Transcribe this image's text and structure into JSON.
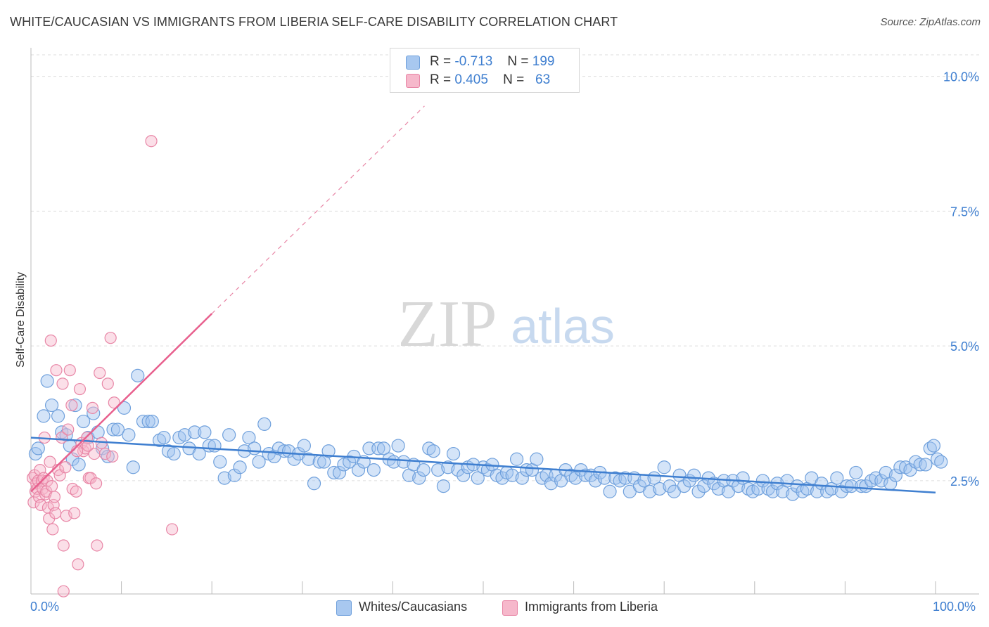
{
  "title": "WHITE/CAUCASIAN VS IMMIGRANTS FROM LIBERIA SELF-CARE DISABILITY CORRELATION CHART",
  "source": "Source: ZipAtlas.com",
  "watermark": {
    "zip": "ZIP",
    "atlas": "atlas"
  },
  "legend_top": [
    {
      "r_label": "R =",
      "r_value": "-0.713",
      "n_label": "N =",
      "n_value": "199",
      "color": "#a8c8f0",
      "border": "#6fa0dc"
    },
    {
      "r_label": "R =",
      "r_value": "0.405",
      "n_label": "N =",
      "n_value": "63",
      "color": "#f6b8cb",
      "border": "#e886a6"
    }
  ],
  "legend_bottom": [
    {
      "label": "Whites/Caucasians",
      "color": "#a8c8f0",
      "border": "#6fa0dc"
    },
    {
      "label": "Immigrants from Liberia",
      "color": "#f6b8cb",
      "border": "#e886a6"
    }
  ],
  "x_tick_labels": {
    "min": "0.0%",
    "max": "100.0%"
  },
  "colors": {
    "blue": "#3f7fd0",
    "blue_fill": "rgba(160,195,240,0.45)",
    "blue_stroke": "#6fa0dc",
    "pink": "#e8608e",
    "pink_fill": "rgba(246,184,203,0.45)",
    "pink_stroke": "#e886a6",
    "grid": "#dddddd"
  },
  "chart_data": {
    "type": "scatter",
    "ylabel": "Self-Care Disability",
    "xlim": [
      0,
      100
    ],
    "ylim": [
      0.4,
      10.4
    ],
    "y_ticks": [
      {
        "value": 2.5,
        "label": "2.5%"
      },
      {
        "value": 5.0,
        "label": "5.0%"
      },
      {
        "value": 7.5,
        "label": "7.5%"
      },
      {
        "value": 10.0,
        "label": "10.0%"
      }
    ],
    "series": [
      {
        "name": "Whites/Caucasians",
        "trend": {
          "x0": 0,
          "y0": 3.3,
          "x1": 100,
          "y1": 2.28
        },
        "points": [
          [
            0.5,
            3.0
          ],
          [
            0.8,
            3.1
          ],
          [
            1.4,
            3.7
          ],
          [
            1.8,
            4.35
          ],
          [
            2.3,
            3.9
          ],
          [
            3.0,
            3.7
          ],
          [
            3.4,
            3.4
          ],
          [
            3.9,
            3.35
          ],
          [
            4.3,
            3.15
          ],
          [
            4.6,
            2.9
          ],
          [
            4.9,
            3.9
          ],
          [
            5.3,
            2.8
          ],
          [
            5.8,
            3.6
          ],
          [
            6.3,
            3.3
          ],
          [
            6.9,
            3.75
          ],
          [
            7.4,
            3.4
          ],
          [
            7.9,
            3.1
          ],
          [
            8.5,
            2.95
          ],
          [
            9.1,
            3.45
          ],
          [
            9.6,
            3.45
          ],
          [
            10.3,
            3.85
          ],
          [
            10.8,
            3.35
          ],
          [
            11.3,
            2.75
          ],
          [
            11.8,
            4.45
          ],
          [
            12.4,
            3.6
          ],
          [
            13.0,
            3.6
          ],
          [
            13.4,
            3.6
          ],
          [
            14.2,
            3.25
          ],
          [
            14.7,
            3.3
          ],
          [
            15.2,
            3.05
          ],
          [
            15.8,
            3.0
          ],
          [
            16.4,
            3.3
          ],
          [
            17.0,
            3.35
          ],
          [
            17.5,
            3.1
          ],
          [
            18.1,
            3.4
          ],
          [
            18.6,
            3.0
          ],
          [
            19.2,
            3.4
          ],
          [
            19.7,
            3.15
          ],
          [
            20.3,
            3.15
          ],
          [
            20.9,
            2.85
          ],
          [
            21.4,
            2.55
          ],
          [
            21.9,
            3.35
          ],
          [
            22.5,
            2.6
          ],
          [
            23.1,
            2.75
          ],
          [
            23.6,
            3.05
          ],
          [
            24.1,
            3.3
          ],
          [
            24.7,
            3.1
          ],
          [
            25.2,
            2.85
          ],
          [
            25.8,
            3.55
          ],
          [
            26.3,
            3.0
          ],
          [
            26.9,
            2.95
          ],
          [
            27.4,
            3.1
          ],
          [
            28.0,
            3.05
          ],
          [
            28.5,
            3.05
          ],
          [
            29.1,
            2.9
          ],
          [
            29.6,
            3.0
          ],
          [
            30.2,
            3.15
          ],
          [
            30.7,
            2.9
          ],
          [
            31.3,
            2.45
          ],
          [
            31.9,
            2.85
          ],
          [
            32.4,
            2.85
          ],
          [
            32.9,
            3.05
          ],
          [
            33.5,
            2.65
          ],
          [
            34.1,
            2.65
          ],
          [
            34.6,
            2.8
          ],
          [
            35.2,
            2.85
          ],
          [
            35.7,
            2.95
          ],
          [
            36.2,
            2.7
          ],
          [
            36.8,
            2.85
          ],
          [
            37.4,
            3.1
          ],
          [
            37.9,
            2.7
          ],
          [
            38.4,
            3.1
          ],
          [
            39.0,
            3.1
          ],
          [
            39.6,
            2.9
          ],
          [
            40.1,
            2.85
          ],
          [
            40.6,
            3.15
          ],
          [
            41.2,
            2.85
          ],
          [
            41.8,
            2.6
          ],
          [
            42.3,
            2.8
          ],
          [
            42.9,
            2.55
          ],
          [
            43.4,
            2.7
          ],
          [
            44.0,
            3.1
          ],
          [
            44.5,
            3.05
          ],
          [
            45.0,
            2.7
          ],
          [
            45.6,
            2.4
          ],
          [
            46.1,
            2.75
          ],
          [
            46.7,
            3.0
          ],
          [
            47.2,
            2.7
          ],
          [
            47.8,
            2.6
          ],
          [
            48.3,
            2.75
          ],
          [
            48.9,
            2.8
          ],
          [
            49.4,
            2.55
          ],
          [
            50.0,
            2.75
          ],
          [
            50.5,
            2.7
          ],
          [
            51.0,
            2.8
          ],
          [
            51.5,
            2.6
          ],
          [
            52.1,
            2.55
          ],
          [
            52.6,
            2.65
          ],
          [
            53.2,
            2.6
          ],
          [
            53.7,
            2.9
          ],
          [
            54.3,
            2.55
          ],
          [
            54.8,
            2.7
          ],
          [
            55.4,
            2.7
          ],
          [
            55.9,
            2.9
          ],
          [
            56.5,
            2.55
          ],
          [
            57.0,
            2.6
          ],
          [
            57.5,
            2.45
          ],
          [
            58.0,
            2.6
          ],
          [
            58.6,
            2.5
          ],
          [
            59.1,
            2.7
          ],
          [
            59.7,
            2.6
          ],
          [
            60.2,
            2.55
          ],
          [
            60.8,
            2.7
          ],
          [
            61.3,
            2.6
          ],
          [
            61.9,
            2.6
          ],
          [
            62.4,
            2.5
          ],
          [
            62.9,
            2.65
          ],
          [
            63.4,
            2.55
          ],
          [
            64.0,
            2.3
          ],
          [
            64.6,
            2.55
          ],
          [
            65.1,
            2.5
          ],
          [
            65.7,
            2.55
          ],
          [
            66.2,
            2.3
          ],
          [
            66.7,
            2.55
          ],
          [
            67.3,
            2.4
          ],
          [
            67.8,
            2.5
          ],
          [
            68.4,
            2.3
          ],
          [
            68.9,
            2.55
          ],
          [
            69.5,
            2.35
          ],
          [
            70.0,
            2.75
          ],
          [
            70.6,
            2.4
          ],
          [
            71.1,
            2.3
          ],
          [
            71.7,
            2.6
          ],
          [
            72.2,
            2.4
          ],
          [
            72.8,
            2.5
          ],
          [
            73.3,
            2.6
          ],
          [
            73.8,
            2.3
          ],
          [
            74.4,
            2.4
          ],
          [
            74.9,
            2.55
          ],
          [
            75.5,
            2.45
          ],
          [
            76.0,
            2.35
          ],
          [
            76.6,
            2.5
          ],
          [
            77.1,
            2.3
          ],
          [
            77.6,
            2.5
          ],
          [
            78.2,
            2.4
          ],
          [
            78.7,
            2.55
          ],
          [
            79.3,
            2.35
          ],
          [
            79.8,
            2.3
          ],
          [
            80.4,
            2.35
          ],
          [
            80.9,
            2.5
          ],
          [
            81.5,
            2.35
          ],
          [
            82.0,
            2.3
          ],
          [
            82.5,
            2.45
          ],
          [
            83.1,
            2.3
          ],
          [
            83.6,
            2.5
          ],
          [
            84.2,
            2.25
          ],
          [
            84.7,
            2.4
          ],
          [
            85.3,
            2.3
          ],
          [
            85.8,
            2.35
          ],
          [
            86.3,
            2.55
          ],
          [
            86.9,
            2.3
          ],
          [
            87.4,
            2.45
          ],
          [
            88.0,
            2.3
          ],
          [
            88.5,
            2.35
          ],
          [
            89.1,
            2.55
          ],
          [
            89.6,
            2.3
          ],
          [
            90.2,
            2.4
          ],
          [
            90.7,
            2.4
          ],
          [
            91.2,
            2.65
          ],
          [
            91.8,
            2.4
          ],
          [
            92.3,
            2.4
          ],
          [
            92.9,
            2.5
          ],
          [
            93.4,
            2.55
          ],
          [
            94.0,
            2.5
          ],
          [
            94.5,
            2.65
          ],
          [
            95.0,
            2.45
          ],
          [
            95.6,
            2.6
          ],
          [
            96.1,
            2.75
          ],
          [
            96.7,
            2.75
          ],
          [
            97.2,
            2.7
          ],
          [
            97.8,
            2.85
          ],
          [
            98.3,
            2.8
          ],
          [
            98.9,
            2.8
          ],
          [
            99.4,
            3.1
          ],
          [
            99.8,
            3.15
          ],
          [
            100.2,
            2.9
          ],
          [
            100.6,
            2.85
          ]
        ]
      },
      {
        "name": "Immigrants from Liberia",
        "trend": {
          "x0": 0,
          "y0": 2.3,
          "x1": 20,
          "y1": 5.6,
          "x_dash_end": 43.5,
          "y_dash_end": 9.45
        },
        "points": [
          [
            0.2,
            2.55
          ],
          [
            0.3,
            2.1
          ],
          [
            0.4,
            2.6
          ],
          [
            0.5,
            2.3
          ],
          [
            0.6,
            2.45
          ],
          [
            0.7,
            2.35
          ],
          [
            0.8,
            2.5
          ],
          [
            0.9,
            2.2
          ],
          [
            1.0,
            2.7
          ],
          [
            1.1,
            2.05
          ],
          [
            1.2,
            2.5
          ],
          [
            1.3,
            2.35
          ],
          [
            1.4,
            2.55
          ],
          [
            1.5,
            3.3
          ],
          [
            1.6,
            2.25
          ],
          [
            1.7,
            2.3
          ],
          [
            1.8,
            2.5
          ],
          [
            1.9,
            2.0
          ],
          [
            2.0,
            1.8
          ],
          [
            2.1,
            2.85
          ],
          [
            2.2,
            5.1
          ],
          [
            2.3,
            2.4
          ],
          [
            2.4,
            1.6
          ],
          [
            2.5,
            2.05
          ],
          [
            2.6,
            2.2
          ],
          [
            2.7,
            1.9
          ],
          [
            2.8,
            4.55
          ],
          [
            3.0,
            2.7
          ],
          [
            3.2,
            2.6
          ],
          [
            3.4,
            3.3
          ],
          [
            3.5,
            4.3
          ],
          [
            3.6,
            1.3
          ],
          [
            3.8,
            2.75
          ],
          [
            3.9,
            1.85
          ],
          [
            4.1,
            3.45
          ],
          [
            4.3,
            4.55
          ],
          [
            4.5,
            3.9
          ],
          [
            4.6,
            2.35
          ],
          [
            4.8,
            1.9
          ],
          [
            5.0,
            2.3
          ],
          [
            5.2,
            0.95
          ],
          [
            5.4,
            4.2
          ],
          [
            5.6,
            3.2
          ],
          [
            5.8,
            3.05
          ],
          [
            6.0,
            3.1
          ],
          [
            6.2,
            3.3
          ],
          [
            6.4,
            2.55
          ],
          [
            6.6,
            2.55
          ],
          [
            6.8,
            3.85
          ],
          [
            7.0,
            3.0
          ],
          [
            7.2,
            2.45
          ],
          [
            6.3,
            3.15
          ],
          [
            5.1,
            3.05
          ],
          [
            7.6,
            4.5
          ],
          [
            7.8,
            3.2
          ],
          [
            8.2,
            3.0
          ],
          [
            8.5,
            4.3
          ],
          [
            8.8,
            5.15
          ],
          [
            9.2,
            3.95
          ],
          [
            9.0,
            2.95
          ],
          [
            7.3,
            1.3
          ],
          [
            3.6,
            0.45
          ],
          [
            15.6,
            1.6
          ],
          [
            13.3,
            8.8
          ]
        ]
      }
    ]
  }
}
